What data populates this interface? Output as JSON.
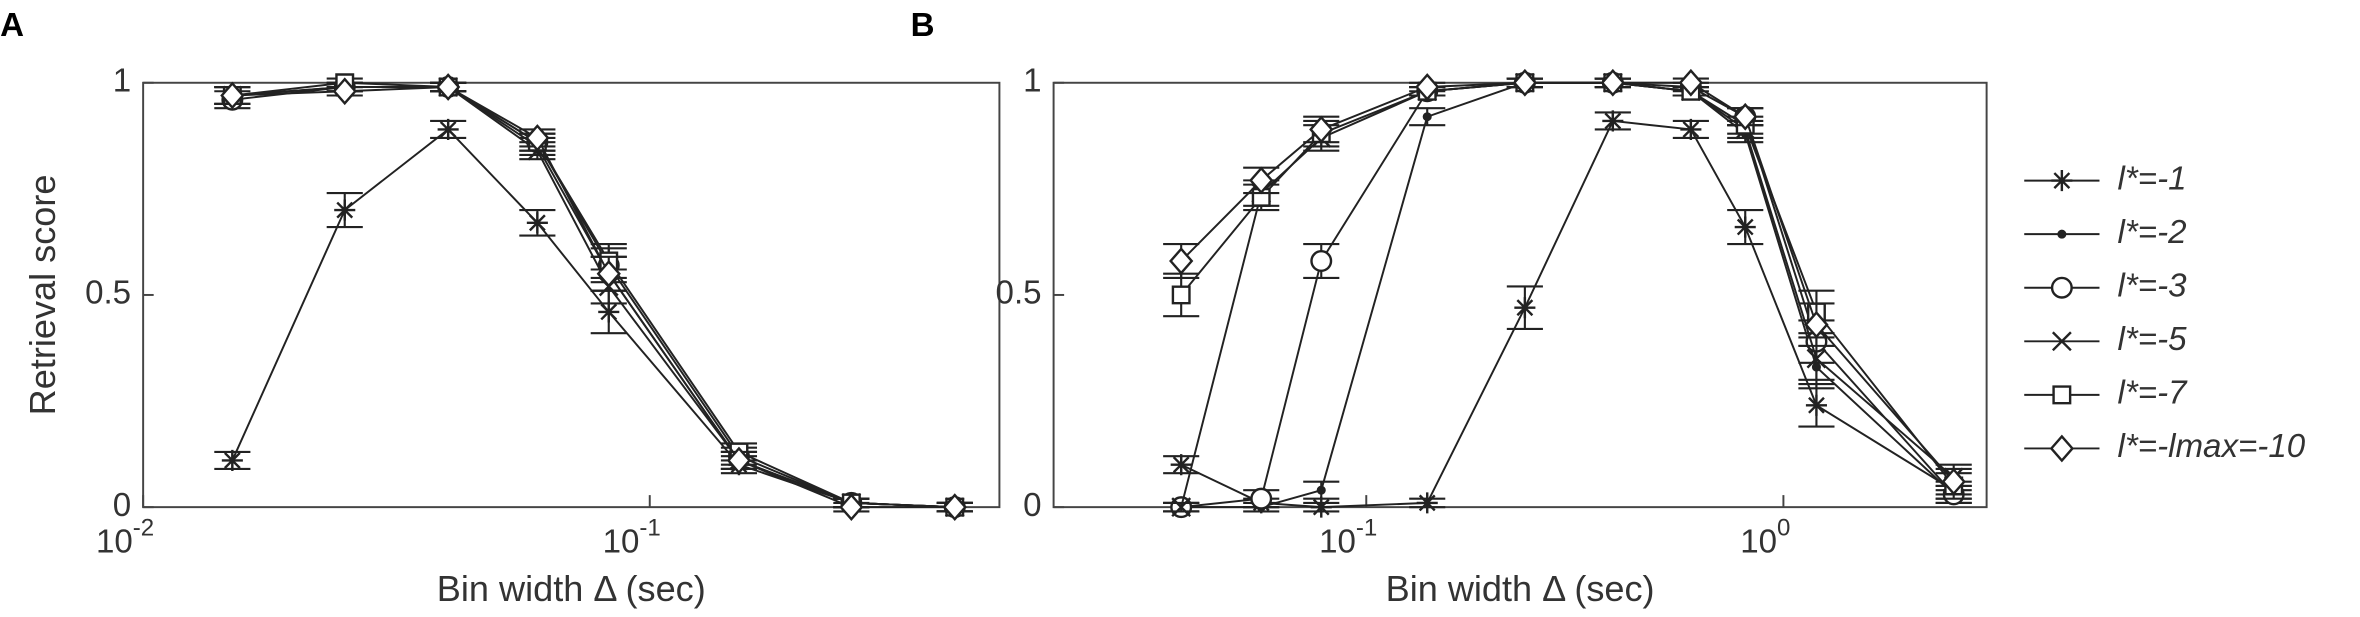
{
  "chart_data": [
    {
      "type": "line",
      "panel_label": "A",
      "x_label": "Bin width Δ (sec)",
      "y_label": "Retrieval score",
      "x": [
        0.015,
        0.025,
        0.04,
        0.06,
        0.083,
        0.15,
        0.25,
        0.4
      ],
      "xlim": [
        0.01,
        0.49
      ],
      "xlog": true,
      "xticks": [
        {
          "value": 0.01,
          "label": "10-2"
        },
        {
          "value": 0.1,
          "label": "10-1"
        }
      ],
      "ylim": [
        0,
        1
      ],
      "yticks": [
        0,
        0.5,
        1
      ],
      "series": [
        {
          "marker": "asterisk",
          "color": "#222",
          "values": [
            0.11,
            0.7,
            0.89,
            0.67,
            0.46,
            0.1,
            0.01,
            0.0
          ],
          "errors": [
            0.02,
            0.04,
            0.02,
            0.03,
            0.05,
            0.02,
            0.01,
            0.01
          ]
        },
        {
          "marker": "dot",
          "color": "#222",
          "values": [
            0.97,
            0.99,
            0.99,
            0.85,
            0.55,
            0.11,
            0.01,
            0.0
          ],
          "errors": [
            0.02,
            0.01,
            0.01,
            0.02,
            0.04,
            0.02,
            0.01,
            0.01
          ]
        },
        {
          "marker": "circle",
          "color": "#222",
          "values": [
            0.96,
            0.99,
            0.99,
            0.86,
            0.57,
            0.12,
            0.01,
            0.0
          ],
          "errors": [
            0.02,
            0.01,
            0.01,
            0.02,
            0.04,
            0.02,
            0.01,
            0.01
          ]
        },
        {
          "marker": "x",
          "color": "#222",
          "values": [
            0.97,
            0.99,
            0.99,
            0.84,
            0.52,
            0.11,
            0.01,
            0.0
          ],
          "errors": [
            0.02,
            0.01,
            0.01,
            0.02,
            0.04,
            0.02,
            0.01,
            0.01
          ]
        },
        {
          "marker": "square",
          "color": "#222",
          "values": [
            0.97,
            1.0,
            0.99,
            0.86,
            0.58,
            0.13,
            0.01,
            0.0
          ],
          "errors": [
            0.02,
            0.01,
            0.01,
            0.02,
            0.04,
            0.02,
            0.01,
            0.01
          ]
        },
        {
          "marker": "diamond",
          "color": "#222",
          "values": [
            0.97,
            0.98,
            0.99,
            0.87,
            0.55,
            0.11,
            0.0,
            0.0
          ],
          "errors": [
            0.02,
            0.01,
            0.01,
            0.02,
            0.04,
            0.02,
            0.01,
            0.01
          ]
        }
      ]
    },
    {
      "type": "line",
      "panel_label": "B",
      "x_label": "Bin width Δ (sec)",
      "x": [
        0.036,
        0.056,
        0.078,
        0.14,
        0.24,
        0.39,
        0.6,
        0.81,
        1.2,
        2.56
      ],
      "xlim": [
        0.0178,
        3.07
      ],
      "xlog": true,
      "xticks": [
        {
          "value": 0.1,
          "label": "10-1"
        },
        {
          "value": 1,
          "label": "100"
        }
      ],
      "ylim": [
        0,
        1
      ],
      "yticks": [
        0,
        0.5,
        1
      ],
      "legend": "outside-right",
      "series": [
        {
          "name": "l*=-1",
          "marker": "asterisk",
          "color": "#222",
          "values": [
            0.1,
            0.01,
            0.0,
            0.01,
            0.47,
            0.91,
            0.89,
            0.66,
            0.24,
            0.04
          ],
          "errors": [
            0.02,
            0.01,
            0.01,
            0.01,
            0.05,
            0.02,
            0.02,
            0.04,
            0.05,
            0.02
          ]
        },
        {
          "name": "l*=-2",
          "marker": "dot",
          "color": "#222",
          "values": [
            0.0,
            0.0,
            0.04,
            0.92,
            1.0,
            1.0,
            0.98,
            0.88,
            0.33,
            0.03
          ],
          "errors": [
            0.01,
            0.01,
            0.02,
            0.02,
            0.01,
            0.01,
            0.01,
            0.02,
            0.05,
            0.02
          ]
        },
        {
          "name": "l*=-3",
          "marker": "circle",
          "color": "#222",
          "values": [
            0.0,
            0.02,
            0.58,
            0.98,
            1.0,
            1.0,
            0.99,
            0.92,
            0.39,
            0.03
          ],
          "errors": [
            0.01,
            0.02,
            0.04,
            0.01,
            0.01,
            0.01,
            0.01,
            0.02,
            0.05,
            0.02
          ]
        },
        {
          "name": "l*=-5",
          "marker": "x",
          "color": "#222",
          "values": [
            0.0,
            0.74,
            0.87,
            0.98,
            1.0,
            1.0,
            0.98,
            0.89,
            0.35,
            0.07
          ],
          "errors": [
            0.01,
            0.03,
            0.03,
            0.01,
            0.01,
            0.01,
            0.01,
            0.02,
            0.05,
            0.03
          ]
        },
        {
          "name": "l*=-7",
          "marker": "square",
          "color": "#222",
          "values": [
            0.5,
            0.73,
            0.88,
            0.98,
            1.0,
            1.0,
            0.98,
            0.9,
            0.46,
            0.05
          ],
          "errors": [
            0.05,
            0.03,
            0.03,
            0.01,
            0.01,
            0.01,
            0.01,
            0.02,
            0.05,
            0.03
          ]
        },
        {
          "name": "l*=-lmax=-10",
          "marker": "diamond",
          "color": "#222",
          "values": [
            0.58,
            0.77,
            0.89,
            0.99,
            1.0,
            1.0,
            1.0,
            0.92,
            0.43,
            0.06
          ],
          "errors": [
            0.04,
            0.03,
            0.03,
            0.01,
            0.01,
            0.01,
            0.01,
            0.02,
            0.05,
            0.03
          ]
        }
      ]
    }
  ]
}
